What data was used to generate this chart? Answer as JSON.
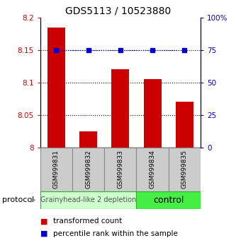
{
  "title": "GDS5113 / 10523880",
  "samples": [
    "GSM999831",
    "GSM999832",
    "GSM999833",
    "GSM999834",
    "GSM999835"
  ],
  "bar_values": [
    8.185,
    8.025,
    8.12,
    8.105,
    8.07
  ],
  "percentile_values": [
    75,
    75,
    75,
    75,
    75
  ],
  "bar_color": "#cc0000",
  "percentile_color": "#0000cc",
  "ylim_left": [
    8.0,
    8.2
  ],
  "ylim_right": [
    0,
    100
  ],
  "yticks_left": [
    8.0,
    8.05,
    8.1,
    8.15,
    8.2
  ],
  "yticks_right": [
    0,
    25,
    50,
    75,
    100
  ],
  "ytick_labels_left": [
    "8",
    "8.05",
    "8.1",
    "8.15",
    "8.2"
  ],
  "ytick_labels_right": [
    "0",
    "25",
    "50",
    "75",
    "100%"
  ],
  "group1_label": "Grainyhead-like 2 depletion",
  "group2_label": "control",
  "group1_color": "#ccffcc",
  "group2_color": "#44ee44",
  "protocol_label": "protocol",
  "legend_bar_label": "transformed count",
  "legend_percentile_label": "percentile rank within the sample",
  "bar_base": 8.0,
  "dotted_grid_values": [
    8.05,
    8.1,
    8.15
  ],
  "title_fontsize": 10,
  "tick_fontsize": 7.5,
  "sample_fontsize": 6.5,
  "group_fontsize": 7,
  "legend_fontsize": 7.5
}
